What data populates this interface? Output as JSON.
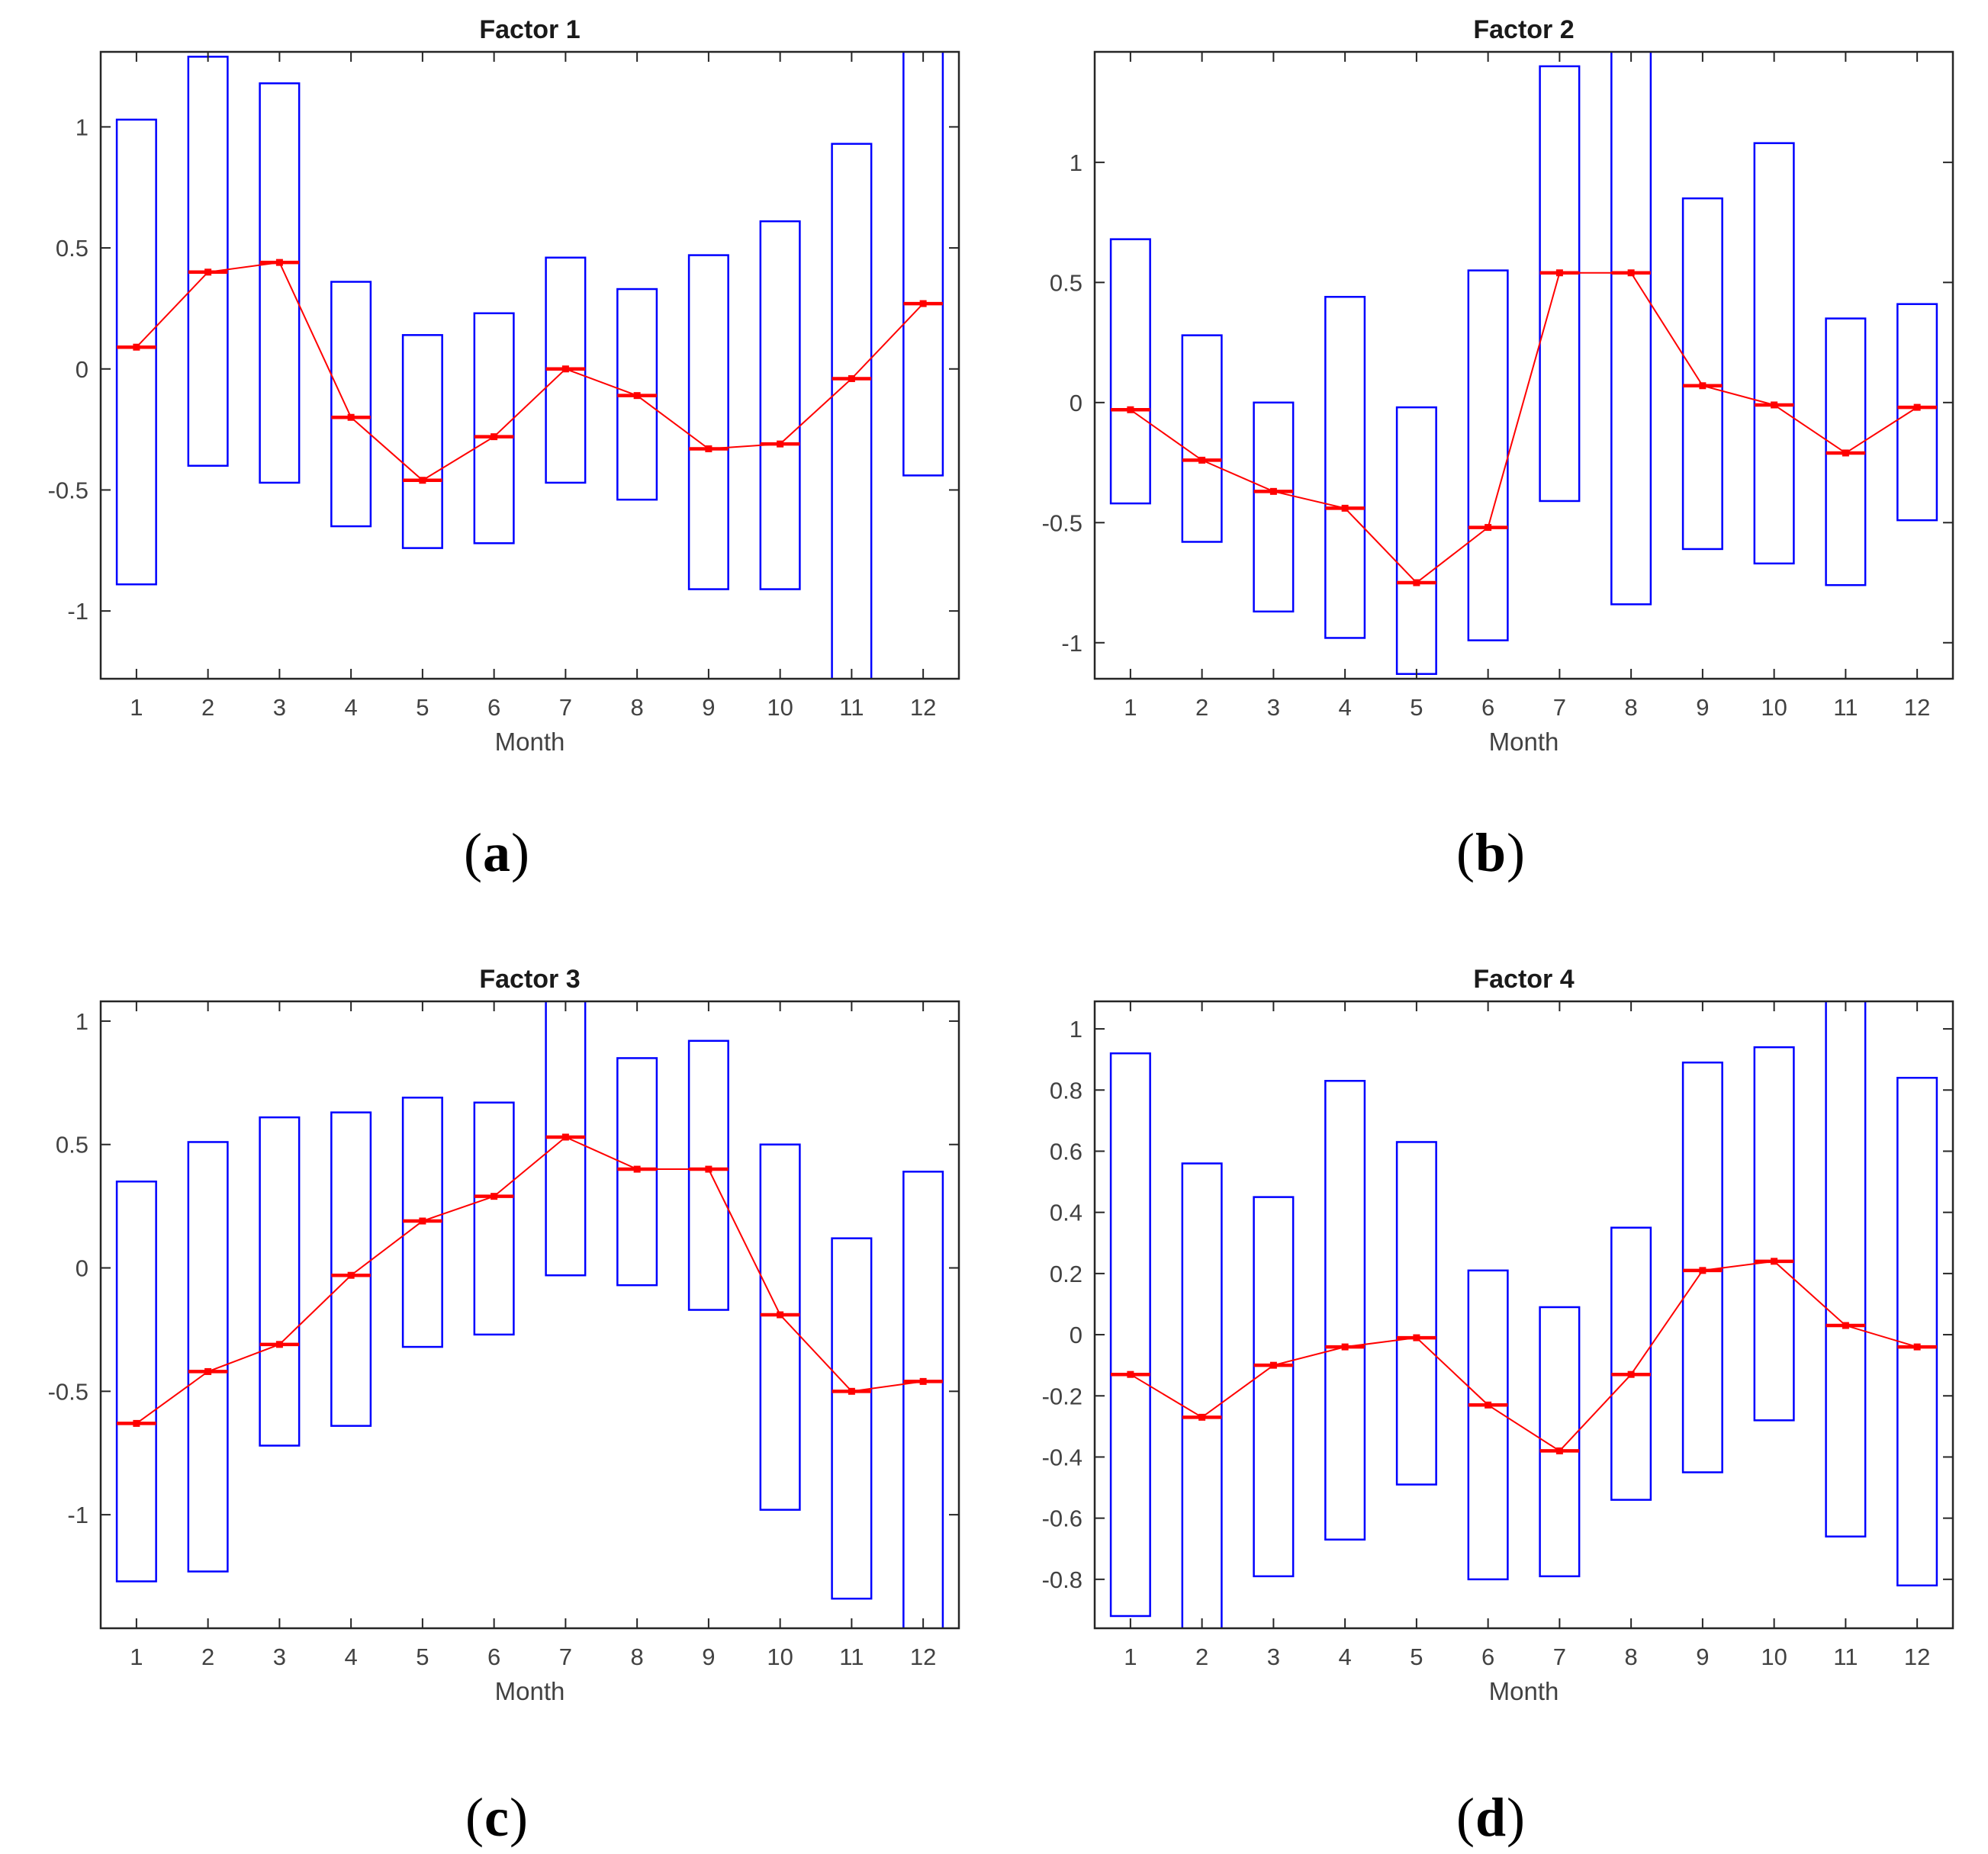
{
  "style": {
    "background": "#ffffff",
    "box_color": "#0000ff",
    "line_color": "#ff0000",
    "axis_color": "#262626",
    "tick_label_color": "#424242",
    "title_color": "#1a1a1a"
  },
  "chart_data": [
    {
      "type": "bar",
      "subtype": "floating-interval-box-with-mean-line",
      "title": "Factor 1",
      "xlabel": "Month",
      "caption": {
        "open": "(",
        "letter": "a",
        "close": ")"
      },
      "categories": [
        "1",
        "2",
        "3",
        "4",
        "5",
        "6",
        "7",
        "8",
        "9",
        "10",
        "11",
        "12"
      ],
      "series": [
        {
          "name": "interval_low",
          "values": [
            -0.89,
            -0.4,
            -0.47,
            -0.65,
            -0.74,
            -0.72,
            -0.47,
            -0.54,
            -0.91,
            -0.91,
            -1.45,
            -0.44
          ]
        },
        {
          "name": "interval_high",
          "values": [
            1.03,
            1.29,
            1.18,
            0.36,
            0.14,
            0.23,
            0.46,
            0.33,
            0.47,
            0.61,
            0.93,
            1.45
          ]
        },
        {
          "name": "mean",
          "values": [
            0.09,
            0.4,
            0.44,
            -0.2,
            -0.46,
            -0.28,
            0.0,
            -0.11,
            -0.33,
            -0.31,
            -0.04,
            0.27
          ]
        }
      ],
      "ylim": [
        -1.28,
        1.31
      ],
      "yticks": [
        -1,
        -0.5,
        0,
        0.5,
        1
      ],
      "ytick_labels": [
        "-1",
        "-0.5",
        "0",
        "0.5",
        "1"
      ],
      "grid": false,
      "legend": false
    },
    {
      "type": "bar",
      "subtype": "floating-interval-box-with-mean-line",
      "title": "Factor 2",
      "xlabel": "Month",
      "caption": {
        "open": "(",
        "letter": "b",
        "close": ")"
      },
      "categories": [
        "1",
        "2",
        "3",
        "4",
        "5",
        "6",
        "7",
        "8",
        "9",
        "10",
        "11",
        "12"
      ],
      "series": [
        {
          "name": "interval_low",
          "values": [
            -0.42,
            -0.58,
            -0.87,
            -0.98,
            -1.13,
            -0.99,
            -0.41,
            -0.84,
            -0.61,
            -0.67,
            -0.76,
            -0.49
          ]
        },
        {
          "name": "interval_high",
          "values": [
            0.68,
            0.28,
            0.0,
            0.44,
            -0.02,
            0.55,
            1.4,
            1.6,
            0.85,
            1.08,
            0.35,
            0.41
          ]
        },
        {
          "name": "mean",
          "values": [
            -0.03,
            -0.24,
            -0.37,
            -0.44,
            -0.75,
            -0.52,
            0.54,
            0.54,
            0.07,
            -0.01,
            -0.21,
            -0.02
          ]
        }
      ],
      "ylim": [
        -1.15,
        1.46
      ],
      "yticks": [
        -1,
        -0.5,
        0,
        0.5,
        1
      ],
      "ytick_labels": [
        "-1",
        "-0.5",
        "0",
        "0.5",
        "1"
      ],
      "grid": false,
      "legend": false
    },
    {
      "type": "bar",
      "subtype": "floating-interval-box-with-mean-line",
      "title": "Factor 3",
      "xlabel": "Month",
      "caption": {
        "open": "(",
        "letter": "c",
        "close": ")"
      },
      "categories": [
        "1",
        "2",
        "3",
        "4",
        "5",
        "6",
        "7",
        "8",
        "9",
        "10",
        "11",
        "12"
      ],
      "series": [
        {
          "name": "interval_low",
          "values": [
            -1.27,
            -1.23,
            -0.72,
            -0.64,
            -0.32,
            -0.27,
            -0.03,
            -0.07,
            -0.17,
            -0.98,
            -1.34,
            -1.6
          ]
        },
        {
          "name": "interval_high",
          "values": [
            0.35,
            0.51,
            0.61,
            0.63,
            0.69,
            0.67,
            1.3,
            0.85,
            0.92,
            0.5,
            0.12,
            0.39
          ]
        },
        {
          "name": "mean",
          "values": [
            -0.63,
            -0.42,
            -0.31,
            -0.03,
            0.19,
            0.29,
            0.53,
            0.4,
            0.4,
            -0.19,
            -0.5,
            -0.46
          ]
        }
      ],
      "ylim": [
        -1.46,
        1.08
      ],
      "yticks": [
        -1,
        -0.5,
        0,
        0.5,
        1
      ],
      "ytick_labels": [
        "-1",
        "-0.5",
        "0",
        "0.5",
        "1"
      ],
      "grid": false,
      "legend": false
    },
    {
      "type": "bar",
      "subtype": "floating-interval-box-with-mean-line",
      "title": "Factor 4",
      "xlabel": "Month",
      "caption": {
        "open": "(",
        "letter": "d",
        "close": ")"
      },
      "categories": [
        "1",
        "2",
        "3",
        "4",
        "5",
        "6",
        "7",
        "8",
        "9",
        "10",
        "11",
        "12"
      ],
      "series": [
        {
          "name": "interval_low",
          "values": [
            -0.92,
            -1.06,
            -0.79,
            -0.67,
            -0.49,
            -0.8,
            -0.79,
            -0.54,
            -0.45,
            -0.28,
            -0.66,
            -0.82
          ]
        },
        {
          "name": "interval_high",
          "values": [
            0.92,
            0.56,
            0.45,
            0.83,
            0.63,
            0.21,
            0.09,
            0.35,
            0.89,
            0.94,
            1.2,
            0.84
          ]
        },
        {
          "name": "mean",
          "values": [
            -0.13,
            -0.27,
            -0.1,
            -0.04,
            -0.01,
            -0.23,
            -0.38,
            -0.13,
            0.21,
            0.24,
            0.03,
            -0.04
          ]
        }
      ],
      "ylim": [
        -0.96,
        1.09
      ],
      "yticks": [
        -0.8,
        -0.6,
        -0.4,
        -0.2,
        0,
        0.2,
        0.4,
        0.6,
        0.8,
        1
      ],
      "ytick_labels": [
        "-0.8",
        "-0.6",
        "-0.4",
        "-0.2",
        "0",
        "0.2",
        "0.4",
        "0.6",
        "0.8",
        "1"
      ],
      "grid": false,
      "legend": false
    }
  ]
}
